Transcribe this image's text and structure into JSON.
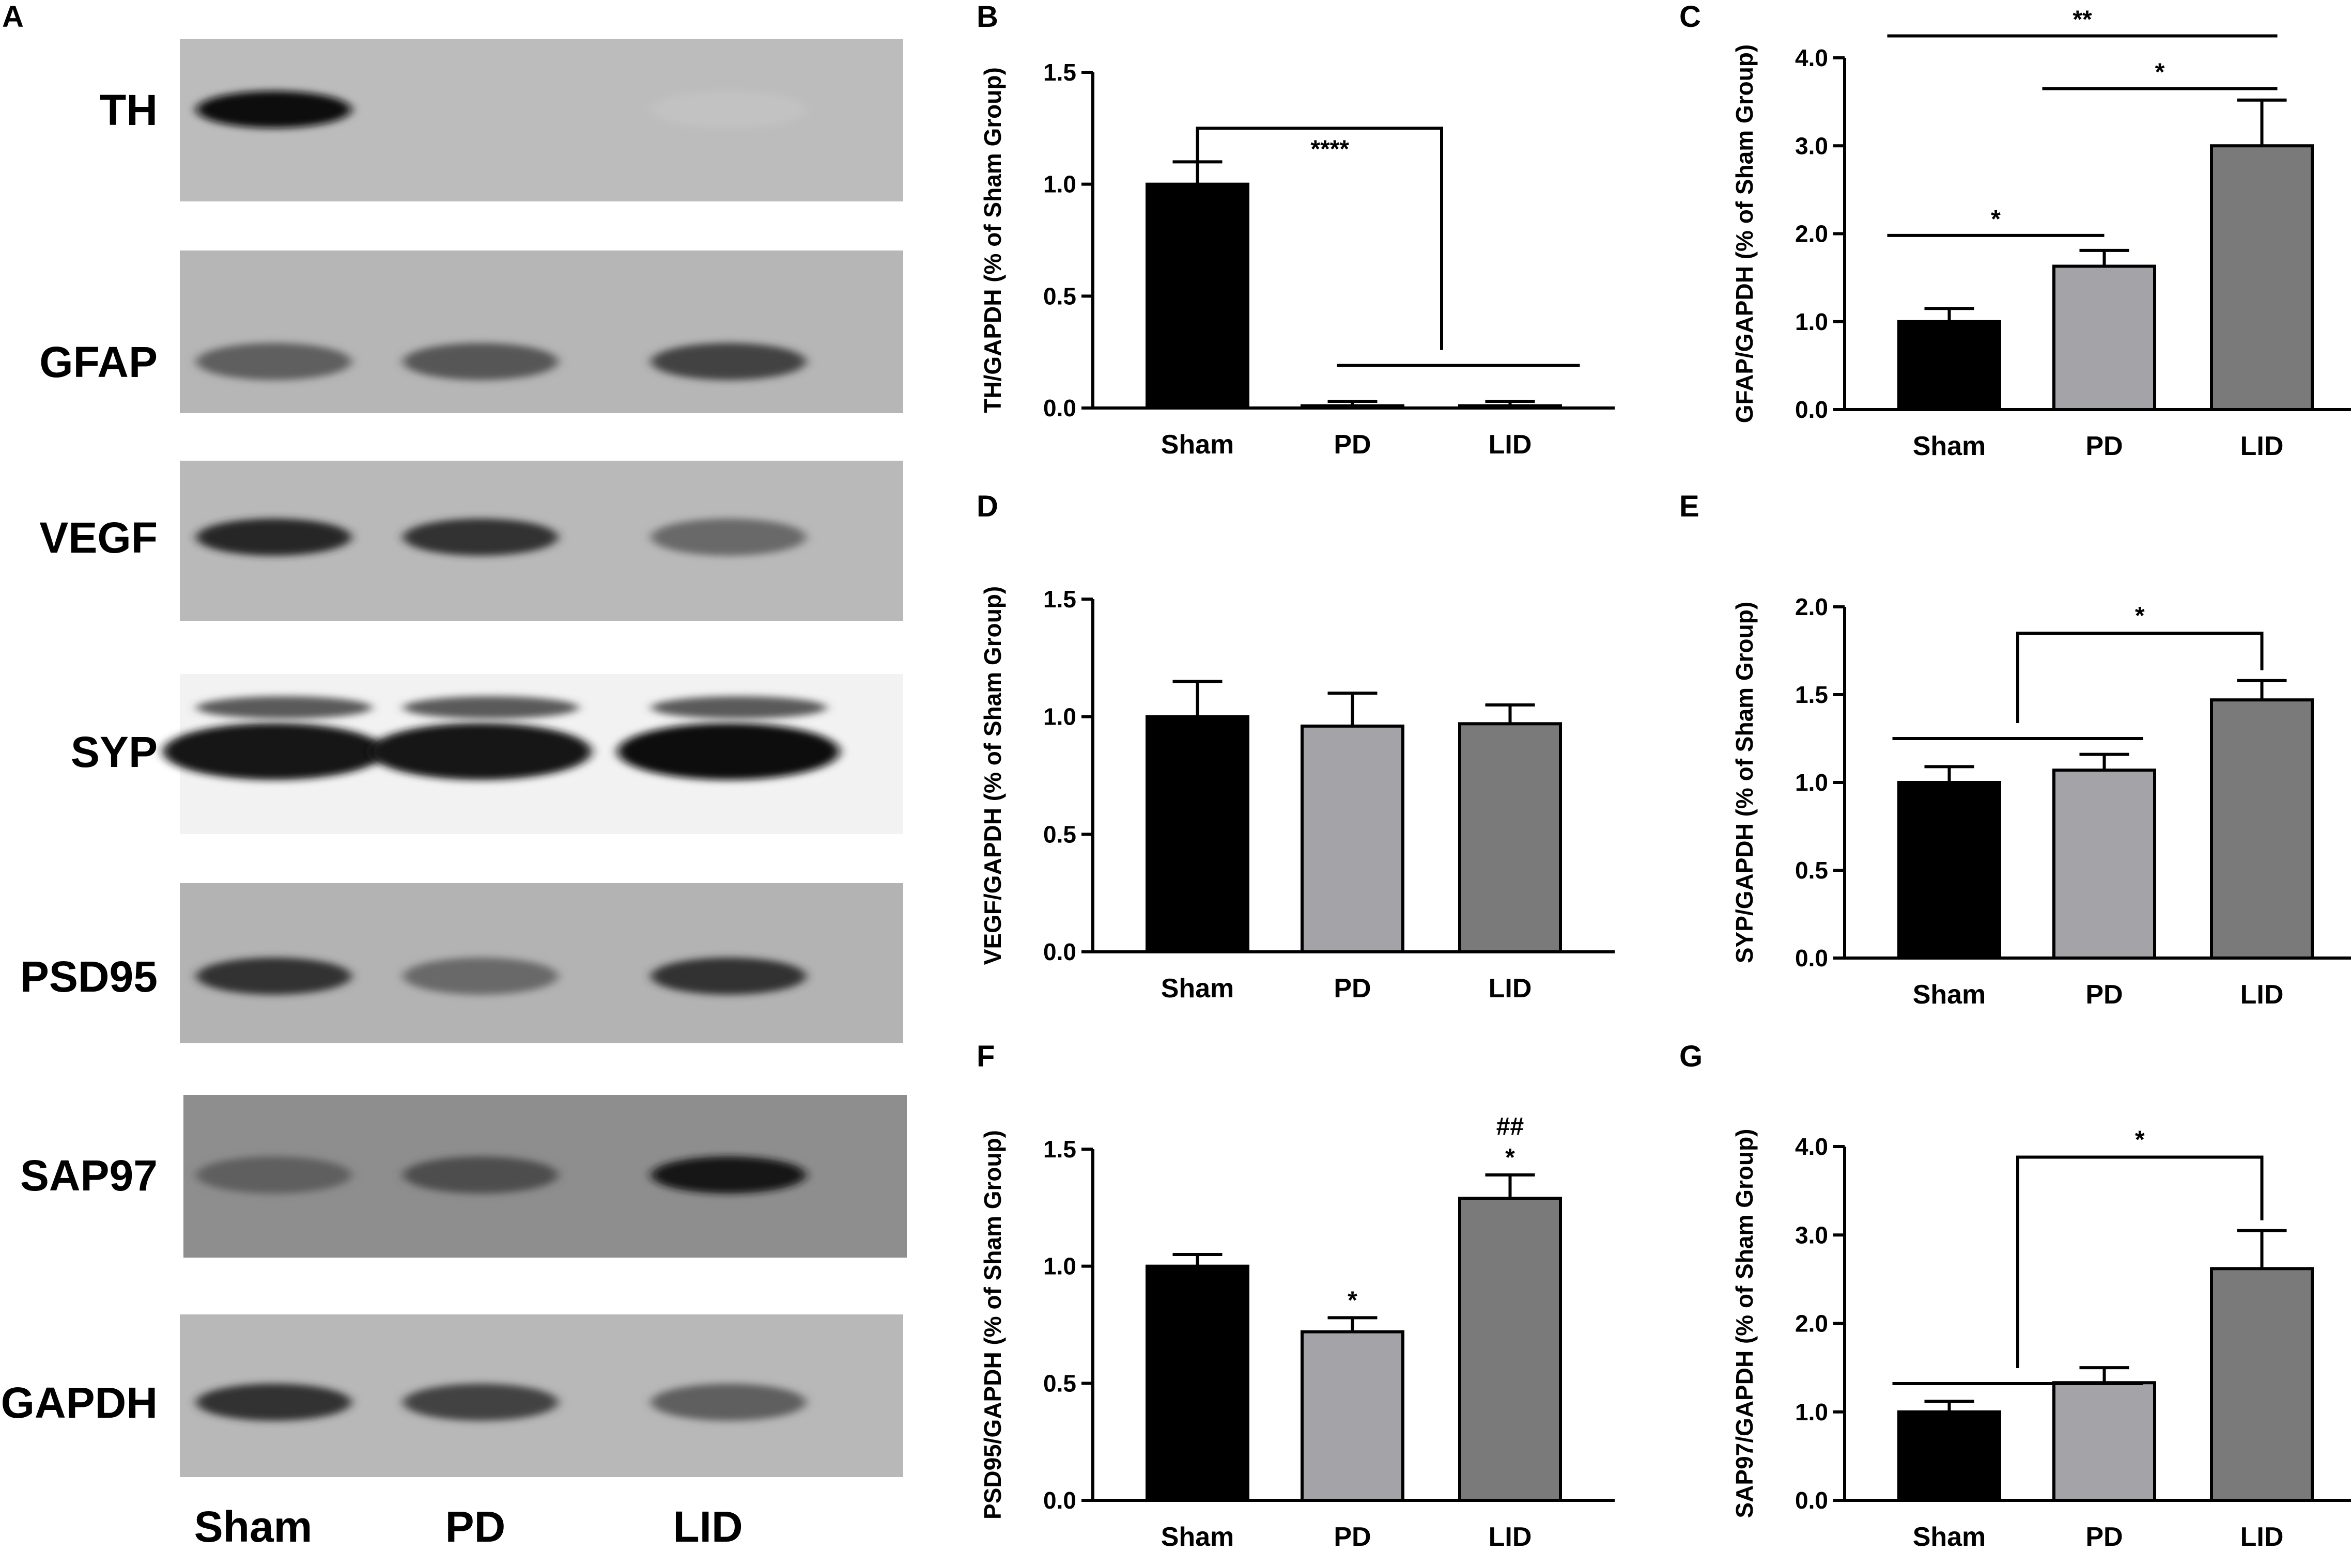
{
  "panel_a": {
    "letter": "A",
    "blots": [
      {
        "label": "TH",
        "style": "th"
      },
      {
        "label": "GFAP",
        "style": "gfap"
      },
      {
        "label": "VEGF",
        "style": "vegf"
      },
      {
        "label": "SYP",
        "style": "syp"
      },
      {
        "label": "PSD95",
        "style": "psd95"
      },
      {
        "label": "SAP97",
        "style": "sap97"
      },
      {
        "label": "GAPDH",
        "style": "gapdh"
      }
    ],
    "lanes": [
      "Sham",
      "PD",
      "LID"
    ],
    "band_intensity": {
      "TH": [
        1.0,
        0.0,
        0.03
      ],
      "GFAP": [
        0.55,
        0.6,
        0.7
      ],
      "VEGF": [
        0.85,
        0.8,
        0.5
      ],
      "SYP": [
        0.95,
        0.95,
        1.0
      ],
      "PSD95": [
        0.8,
        0.5,
        0.8
      ],
      "SAP97": [
        0.55,
        0.65,
        0.95
      ],
      "GAPDH": [
        0.8,
        0.7,
        0.55
      ]
    }
  },
  "colors": {
    "Sham": "#000000",
    "PD": "#a4a4a8",
    "LID": "#7a7a7a"
  },
  "chart_data": [
    {
      "panel": "B",
      "type": "bar",
      "categories": [
        "Sham",
        "PD",
        "LID"
      ],
      "values": [
        1.0,
        0.01,
        0.01
      ],
      "errors": [
        0.1,
        0.02,
        0.02
      ],
      "ylabel": "TH/GAPDH (% of Sham Group)",
      "ylim": [
        0,
        1.5
      ],
      "yticks": [
        "0.0",
        "0.5",
        "1.0",
        "1.5"
      ],
      "annotations": [
        {
          "type": "bracket-group",
          "from": 0,
          "to_group": [
            1,
            2
          ],
          "label": "****"
        }
      ]
    },
    {
      "panel": "C",
      "type": "bar",
      "categories": [
        "Sham",
        "PD",
        "LID"
      ],
      "values": [
        1.0,
        1.63,
        3.0
      ],
      "errors": [
        0.15,
        0.18,
        0.52
      ],
      "ylabel": "GFAP/GAPDH (% of Sham Group)",
      "ylim": [
        0,
        4.0
      ],
      "yticks": [
        "0.0",
        "1.0",
        "2.0",
        "3.0",
        "4.0"
      ],
      "annotations": [
        {
          "type": "line",
          "from": 0,
          "to": 2,
          "label": "**"
        },
        {
          "type": "line",
          "from": 1,
          "to": 2,
          "label": "*"
        },
        {
          "type": "line",
          "from": 0,
          "to": 1,
          "label": "*"
        }
      ]
    },
    {
      "panel": "D",
      "type": "bar",
      "categories": [
        "Sham",
        "PD",
        "LID"
      ],
      "values": [
        1.0,
        0.96,
        0.97
      ],
      "errors": [
        0.15,
        0.14,
        0.08
      ],
      "ylabel": "VEGF/GAPDH (% of Sham Group)",
      "ylim": [
        0,
        1.5
      ],
      "yticks": [
        "0.0",
        "0.5",
        "1.0",
        "1.5"
      ],
      "annotations": []
    },
    {
      "panel": "E",
      "type": "bar",
      "categories": [
        "Sham",
        "PD",
        "LID"
      ],
      "values": [
        1.0,
        1.07,
        1.47
      ],
      "errors": [
        0.09,
        0.09,
        0.11
      ],
      "ylabel": "SYP/GAPDH (% of Sham Group)",
      "ylim": [
        0,
        2.0
      ],
      "yticks": [
        "0.0",
        "0.5",
        "1.0",
        "1.5",
        "2.0"
      ],
      "annotations": [
        {
          "type": "bracket-group",
          "from": 2,
          "to_group": [
            0,
            1
          ],
          "label": "*"
        }
      ]
    },
    {
      "panel": "F",
      "type": "bar",
      "categories": [
        "Sham",
        "PD",
        "LID"
      ],
      "values": [
        1.0,
        0.72,
        1.29
      ],
      "errors": [
        0.05,
        0.06,
        0.1
      ],
      "ylabel": "PSD95/GAPDH (% of Sham Group)",
      "ylim": [
        0,
        1.5
      ],
      "yticks": [
        "0.0",
        "0.5",
        "1.0",
        "1.5"
      ],
      "annotations": [
        {
          "type": "above",
          "index": 1,
          "label": "*"
        },
        {
          "type": "above",
          "index": 2,
          "label": "*"
        },
        {
          "type": "above2",
          "index": 2,
          "label": "##"
        }
      ]
    },
    {
      "panel": "G",
      "type": "bar",
      "categories": [
        "Sham",
        "PD",
        "LID"
      ],
      "values": [
        1.0,
        1.33,
        2.62
      ],
      "errors": [
        0.12,
        0.17,
        0.43
      ],
      "ylabel": "SAP97/GAPDH (% of Sham Group)",
      "ylim": [
        0,
        4.0
      ],
      "yticks": [
        "0.0",
        "1.0",
        "2.0",
        "3.0",
        "4.0"
      ],
      "annotations": [
        {
          "type": "bracket-group",
          "from": 2,
          "to_group": [
            0,
            1
          ],
          "label": "*"
        }
      ]
    }
  ]
}
